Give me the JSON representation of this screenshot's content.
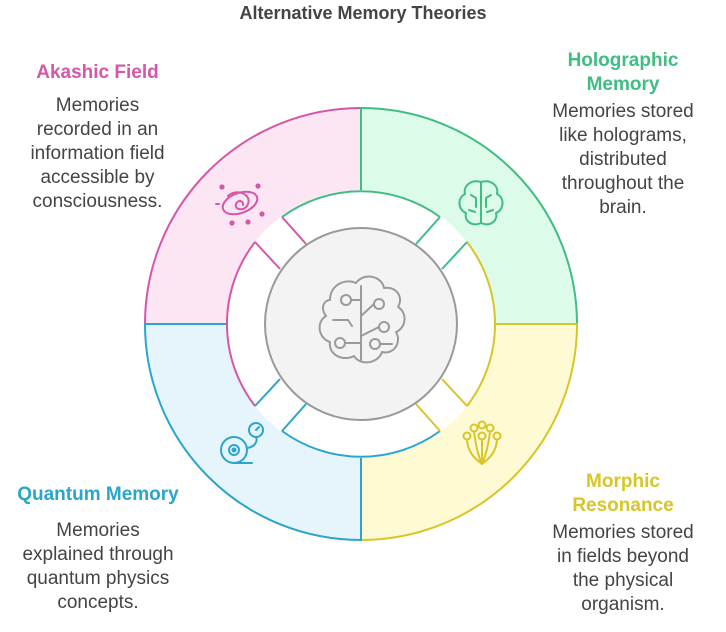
{
  "title": "Alternative Memory Theories",
  "colors": {
    "akashic": "#d557a8",
    "holographic": "#3fbd83",
    "quantum": "#2aa5cc",
    "morphic": "#d9c528",
    "akashic_fill": "#fde6f3",
    "holographic_fill": "#dcfbe8",
    "quantum_fill": "#e6f5fc",
    "morphic_fill": "#fefad4",
    "center_fill": "#f3f3f3",
    "center_stroke": "#9a9a9a",
    "text": "#444444"
  },
  "center": {
    "icon": "brain-circuit-icon"
  },
  "theories": [
    {
      "id": "akashic",
      "heading": "Akashic Field",
      "desc": [
        "Memories",
        "recorded in an",
        "information field",
        "accessible by",
        "consciousness."
      ],
      "icon": "galaxy-icon"
    },
    {
      "id": "holographic",
      "heading": [
        "Holographic",
        "Memory"
      ],
      "desc": [
        "Memories stored",
        "like holograms,",
        "distributed",
        "throughout the",
        "brain."
      ],
      "icon": "brain-icon"
    },
    {
      "id": "quantum",
      "heading": "Quantum Memory",
      "desc": [
        "Memories",
        "explained through",
        "quantum physics",
        "concepts."
      ],
      "icon": "quantum-orbit-icon"
    },
    {
      "id": "morphic",
      "heading": [
        "Morphic",
        "Resonance"
      ],
      "desc": [
        "Memories stored",
        "in fields beyond",
        "the physical",
        "organism."
      ],
      "icon": "resonance-network-icon"
    }
  ]
}
